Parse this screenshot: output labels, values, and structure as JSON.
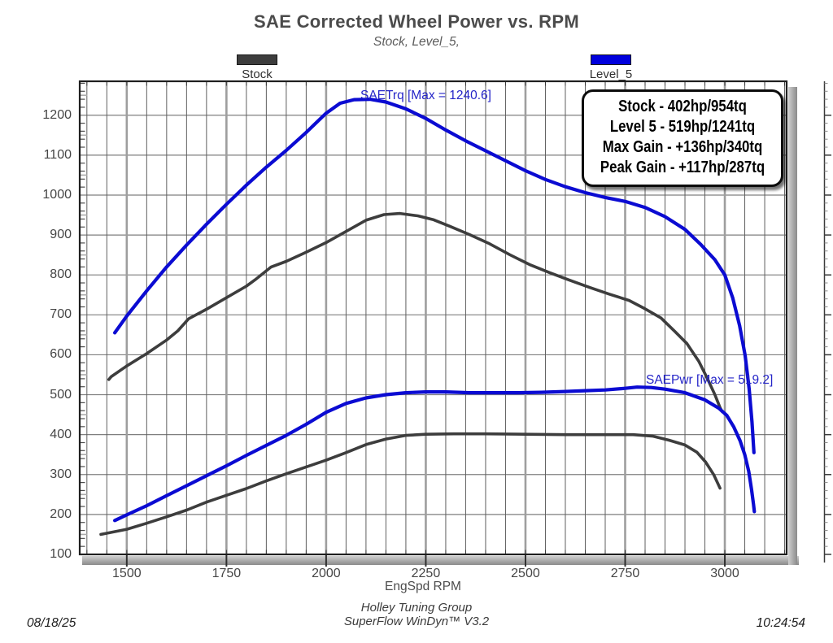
{
  "title": "SAE Corrected Wheel Power vs. RPM",
  "subtitle": "Stock, Level_5,",
  "legend": [
    {
      "label": "Stock",
      "color": "#3d3d3d"
    },
    {
      "label": "Level_5",
      "color": "#0000dd"
    }
  ],
  "annotations": {
    "torque_label": "SAETrq [Max = 1240.6]",
    "power_label": "SAEPwr [Max = 519.2]"
  },
  "info_box": {
    "lines": [
      "Stock - 402hp/954tq",
      "Level 5 - 519hp/1241tq",
      "Max Gain - +136hp/340tq",
      "Peak Gain - +117hp/287tq"
    ]
  },
  "x_axis": {
    "label": "EngSpd RPM"
  },
  "footer": {
    "date": "08/18/25",
    "center_line1": "Holley Tuning Group",
    "center_line2": "SuperFlow WinDyn™ V3.2",
    "time": "10:24:54"
  },
  "colors": {
    "curve_blue": "#0b0bd2",
    "curve_gray": "#3d3d3d",
    "major_grid": "#9e9e9e",
    "minor_grid": "#5f5f5f",
    "h_grid": "#7f7f7f",
    "frame": "#1f1f1f",
    "axis_bar_light": "#cfcfcf",
    "axis_bar_dark": "#8a8a8a"
  },
  "chart_data": {
    "type": "line",
    "title": "SAE Corrected Wheel Power vs. RPM",
    "subtitle": "Stock, Level_5,",
    "xlabel": "EngSpd RPM",
    "ylabel": "",
    "grid": true,
    "x_range": [
      1382,
      3155
    ],
    "y_range": [
      100,
      1285
    ],
    "x_ticks": [
      1500,
      1750,
      2000,
      2250,
      2500,
      2750,
      3000
    ],
    "x_minor_step": 50,
    "y_ticks": [
      100,
      200,
      300,
      400,
      500,
      600,
      700,
      800,
      900,
      1000,
      1100,
      1200
    ],
    "y_minor_step": 20,
    "series": [
      {
        "name": "Stock SAETrq",
        "color": "#3d3d3d",
        "width": 3.6,
        "max": 954,
        "points": [
          [
            1455,
            538
          ],
          [
            1461,
            545
          ],
          [
            1500,
            572
          ],
          [
            1550,
            603
          ],
          [
            1600,
            637
          ],
          [
            1628,
            660
          ],
          [
            1655,
            690
          ],
          [
            1700,
            714
          ],
          [
            1750,
            743
          ],
          [
            1800,
            772
          ],
          [
            1822,
            788
          ],
          [
            1862,
            820
          ],
          [
            1900,
            834
          ],
          [
            1950,
            857
          ],
          [
            2000,
            881
          ],
          [
            2050,
            909
          ],
          [
            2100,
            937
          ],
          [
            2145,
            951
          ],
          [
            2185,
            954
          ],
          [
            2230,
            948
          ],
          [
            2270,
            938
          ],
          [
            2310,
            922
          ],
          [
            2360,
            901
          ],
          [
            2410,
            878
          ],
          [
            2460,
            851
          ],
          [
            2510,
            826
          ],
          [
            2560,
            806
          ],
          [
            2610,
            787
          ],
          [
            2660,
            769
          ],
          [
            2710,
            752
          ],
          [
            2760,
            736
          ],
          [
            2800,
            715
          ],
          [
            2840,
            692
          ],
          [
            2875,
            658
          ],
          [
            2905,
            628
          ],
          [
            2935,
            583
          ],
          [
            2955,
            543
          ],
          [
            2975,
            500
          ],
          [
            2988,
            468
          ],
          [
            2993,
            458
          ]
        ]
      },
      {
        "name": "Stock SAEPwr",
        "color": "#3d3d3d",
        "width": 3.6,
        "max": 402,
        "points": [
          [
            1435,
            150
          ],
          [
            1500,
            163
          ],
          [
            1550,
            178
          ],
          [
            1600,
            194
          ],
          [
            1650,
            211
          ],
          [
            1700,
            231
          ],
          [
            1750,
            248
          ],
          [
            1800,
            265
          ],
          [
            1850,
            284
          ],
          [
            1900,
            302
          ],
          [
            1950,
            319
          ],
          [
            2000,
            336
          ],
          [
            2050,
            355
          ],
          [
            2100,
            375
          ],
          [
            2150,
            389
          ],
          [
            2200,
            398
          ],
          [
            2250,
            401
          ],
          [
            2320,
            402
          ],
          [
            2400,
            402
          ],
          [
            2500,
            401
          ],
          [
            2600,
            400
          ],
          [
            2700,
            400
          ],
          [
            2770,
            400
          ],
          [
            2820,
            396
          ],
          [
            2860,
            386
          ],
          [
            2900,
            374
          ],
          [
            2930,
            356
          ],
          [
            2952,
            331
          ],
          [
            2972,
            300
          ],
          [
            2988,
            266
          ]
        ]
      },
      {
        "name": "Level_5 SAETrq",
        "color": "#0b0bd2",
        "width": 4.2,
        "max": 1240.6,
        "points": [
          [
            1470,
            655
          ],
          [
            1500,
            697
          ],
          [
            1550,
            760
          ],
          [
            1600,
            820
          ],
          [
            1650,
            875
          ],
          [
            1700,
            927
          ],
          [
            1750,
            977
          ],
          [
            1800,
            1025
          ],
          [
            1850,
            1070
          ],
          [
            1900,
            1112
          ],
          [
            1950,
            1157
          ],
          [
            2000,
            1205
          ],
          [
            2035,
            1230
          ],
          [
            2070,
            1239
          ],
          [
            2110,
            1240
          ],
          [
            2150,
            1233
          ],
          [
            2200,
            1216
          ],
          [
            2250,
            1192
          ],
          [
            2300,
            1163
          ],
          [
            2350,
            1136
          ],
          [
            2400,
            1111
          ],
          [
            2450,
            1086
          ],
          [
            2500,
            1061
          ],
          [
            2550,
            1039
          ],
          [
            2600,
            1021
          ],
          [
            2650,
            1006
          ],
          [
            2700,
            994
          ],
          [
            2750,
            984
          ],
          [
            2800,
            969
          ],
          [
            2850,
            946
          ],
          [
            2900,
            914
          ],
          [
            2940,
            876
          ],
          [
            2975,
            838
          ],
          [
            3000,
            800
          ],
          [
            3020,
            742
          ],
          [
            3037,
            673
          ],
          [
            3051,
            598
          ],
          [
            3061,
            515
          ],
          [
            3068,
            432
          ],
          [
            3073,
            355
          ]
        ]
      },
      {
        "name": "Level_5 SAEPwr",
        "color": "#0b0bd2",
        "width": 4.2,
        "max": 519.2,
        "points": [
          [
            1470,
            185
          ],
          [
            1500,
            199
          ],
          [
            1550,
            222
          ],
          [
            1600,
            247
          ],
          [
            1650,
            272
          ],
          [
            1700,
            297
          ],
          [
            1750,
            322
          ],
          [
            1800,
            348
          ],
          [
            1850,
            373
          ],
          [
            1900,
            398
          ],
          [
            1950,
            426
          ],
          [
            2000,
            456
          ],
          [
            2050,
            478
          ],
          [
            2100,
            492
          ],
          [
            2150,
            500
          ],
          [
            2200,
            505
          ],
          [
            2250,
            507
          ],
          [
            2300,
            507
          ],
          [
            2360,
            505
          ],
          [
            2420,
            505
          ],
          [
            2480,
            505
          ],
          [
            2540,
            506
          ],
          [
            2600,
            508
          ],
          [
            2650,
            510
          ],
          [
            2700,
            512
          ],
          [
            2750,
            516
          ],
          [
            2780,
            519
          ],
          [
            2815,
            518
          ],
          [
            2850,
            514
          ],
          [
            2900,
            505
          ],
          [
            2950,
            487
          ],
          [
            2985,
            466
          ],
          [
            3005,
            448
          ],
          [
            3022,
            420
          ],
          [
            3038,
            385
          ],
          [
            3050,
            350
          ],
          [
            3060,
            308
          ],
          [
            3067,
            262
          ],
          [
            3072,
            225
          ],
          [
            3074,
            207
          ]
        ]
      }
    ]
  }
}
